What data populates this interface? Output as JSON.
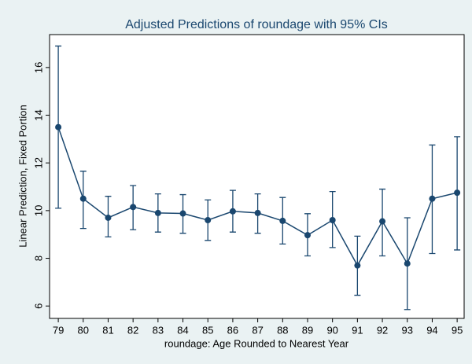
{
  "chart_data": {
    "type": "errorbar-line",
    "title": "Adjusted Predictions of roundage with 95% CIs",
    "x_label": "roundage: Age Rounded to Nearest Year",
    "y_label": "Linear Prediction, Fixed Portion",
    "x": [
      79,
      80,
      81,
      82,
      83,
      84,
      85,
      86,
      87,
      88,
      89,
      90,
      91,
      92,
      93,
      94,
      95
    ],
    "values": [
      13.5,
      10.5,
      9.7,
      10.15,
      9.9,
      9.88,
      9.6,
      9.97,
      9.9,
      9.57,
      8.97,
      9.6,
      7.7,
      9.55,
      7.78,
      10.5,
      10.75
    ],
    "lower": [
      10.1,
      9.25,
      8.9,
      9.2,
      9.1,
      9.05,
      8.75,
      9.1,
      9.05,
      8.6,
      8.1,
      8.45,
      6.45,
      8.1,
      5.85,
      8.2,
      8.35
    ],
    "upper": [
      16.9,
      11.65,
      10.6,
      11.05,
      10.7,
      10.67,
      10.45,
      10.85,
      10.7,
      10.55,
      9.87,
      10.8,
      8.93,
      10.9,
      9.7,
      12.75,
      13.1
    ],
    "color": "#1a476f",
    "xlim": [
      78.65,
      95.28
    ],
    "xticks": [
      79,
      80,
      81,
      82,
      83,
      84,
      85,
      86,
      87,
      88,
      89,
      90,
      91,
      92,
      93,
      94,
      95
    ],
    "ylim": [
      5.48,
      17.38
    ],
    "yticks": [
      6,
      8,
      10,
      12,
      14,
      16
    ],
    "grid": false
  }
}
